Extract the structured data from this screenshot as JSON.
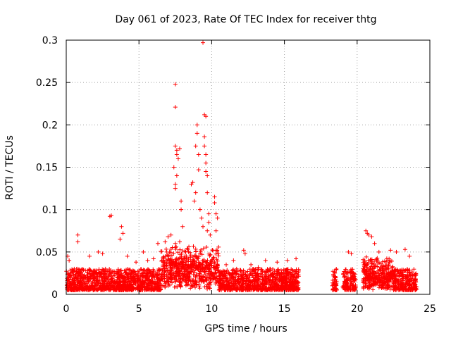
{
  "chart_data": {
    "type": "scatter",
    "title": "Day 061 of 2023, Rate Of TEC Index for receiver thtg",
    "xlabel": "GPS time / hours",
    "ylabel": "ROTI / TECUs",
    "xlim": [
      0,
      25
    ],
    "ylim": [
      0,
      0.3
    ],
    "xticks": [
      "0",
      "5",
      "10",
      "15",
      "20",
      "25"
    ],
    "yticks": [
      "0",
      "0.05",
      "0.1",
      "0.15",
      "0.2",
      "0.25",
      "0.3"
    ],
    "grid": true,
    "marker": "+",
    "color": "#ff0000",
    "observed_spans_hours": [
      [
        0,
        16
      ],
      [
        18.3,
        18.6
      ],
      [
        19.0,
        19.4
      ],
      [
        19.5,
        19.9
      ],
      [
        20.4,
        24.1
      ]
    ],
    "points": [
      [
        0.1,
        0.045
      ],
      [
        0.2,
        0.04
      ],
      [
        0.8,
        0.07
      ],
      [
        0.8,
        0.062
      ],
      [
        1.6,
        0.045
      ],
      [
        2.2,
        0.05
      ],
      [
        2.5,
        0.048
      ],
      [
        3.0,
        0.092
      ],
      [
        3.1,
        0.093
      ],
      [
        3.7,
        0.065
      ],
      [
        3.8,
        0.08
      ],
      [
        3.9,
        0.072
      ],
      [
        4.2,
        0.045
      ],
      [
        5.3,
        0.05
      ],
      [
        6.3,
        0.06
      ],
      [
        6.8,
        0.062
      ],
      [
        7.0,
        0.068
      ],
      [
        7.2,
        0.07
      ],
      [
        7.5,
        0.06
      ],
      [
        7.8,
        0.062
      ],
      [
        7.5,
        0.175
      ],
      [
        7.6,
        0.17
      ],
      [
        7.6,
        0.165
      ],
      [
        7.7,
        0.16
      ],
      [
        7.8,
        0.172
      ],
      [
        7.5,
        0.248
      ],
      [
        7.5,
        0.221
      ],
      [
        7.4,
        0.15
      ],
      [
        7.5,
        0.13
      ],
      [
        7.5,
        0.125
      ],
      [
        7.6,
        0.14
      ],
      [
        7.9,
        0.11
      ],
      [
        7.9,
        0.1
      ],
      [
        8.0,
        0.08
      ],
      [
        8.6,
        0.13
      ],
      [
        8.7,
        0.132
      ],
      [
        8.8,
        0.11
      ],
      [
        8.9,
        0.12
      ],
      [
        8.9,
        0.175
      ],
      [
        9.0,
        0.19
      ],
      [
        9.0,
        0.2
      ],
      [
        9.1,
        0.165
      ],
      [
        9.1,
        0.147
      ],
      [
        9.2,
        0.1
      ],
      [
        9.3,
        0.09
      ],
      [
        9.4,
        0.08
      ],
      [
        9.4,
        0.297
      ],
      [
        9.5,
        0.212
      ],
      [
        9.6,
        0.21
      ],
      [
        9.5,
        0.186
      ],
      [
        9.5,
        0.175
      ],
      [
        9.6,
        0.165
      ],
      [
        9.6,
        0.155
      ],
      [
        9.6,
        0.145
      ],
      [
        9.7,
        0.14
      ],
      [
        9.7,
        0.12
      ],
      [
        9.8,
        0.095
      ],
      [
        9.8,
        0.085
      ],
      [
        10.2,
        0.115
      ],
      [
        10.2,
        0.108
      ],
      [
        10.3,
        0.095
      ],
      [
        10.4,
        0.09
      ],
      [
        10.3,
        0.075
      ],
      [
        9.7,
        0.075
      ],
      [
        9.9,
        0.07
      ],
      [
        12.2,
        0.052
      ],
      [
        12.3,
        0.048
      ],
      [
        13.7,
        0.04
      ],
      [
        14.0,
        0.03
      ],
      [
        15.2,
        0.04
      ],
      [
        15.8,
        0.042
      ],
      [
        19.4,
        0.05
      ],
      [
        19.6,
        0.048
      ],
      [
        20.6,
        0.075
      ],
      [
        20.7,
        0.072
      ],
      [
        20.8,
        0.07
      ],
      [
        21.0,
        0.068
      ],
      [
        21.2,
        0.06
      ],
      [
        21.5,
        0.05
      ],
      [
        22.3,
        0.052
      ],
      [
        22.7,
        0.05
      ],
      [
        23.3,
        0.053
      ],
      [
        23.6,
        0.045
      ],
      [
        2.7,
        0.03
      ],
      [
        4.8,
        0.038
      ],
      [
        5.6,
        0.04
      ],
      [
        6.0,
        0.042
      ],
      [
        11.0,
        0.035
      ],
      [
        11.5,
        0.04
      ],
      [
        12.7,
        0.035
      ],
      [
        13.2,
        0.032
      ],
      [
        14.5,
        0.038
      ],
      [
        18.4,
        0.012
      ],
      [
        18.5,
        0.01
      ],
      [
        19.1,
        0.02
      ],
      [
        19.2,
        0.015
      ]
    ]
  }
}
